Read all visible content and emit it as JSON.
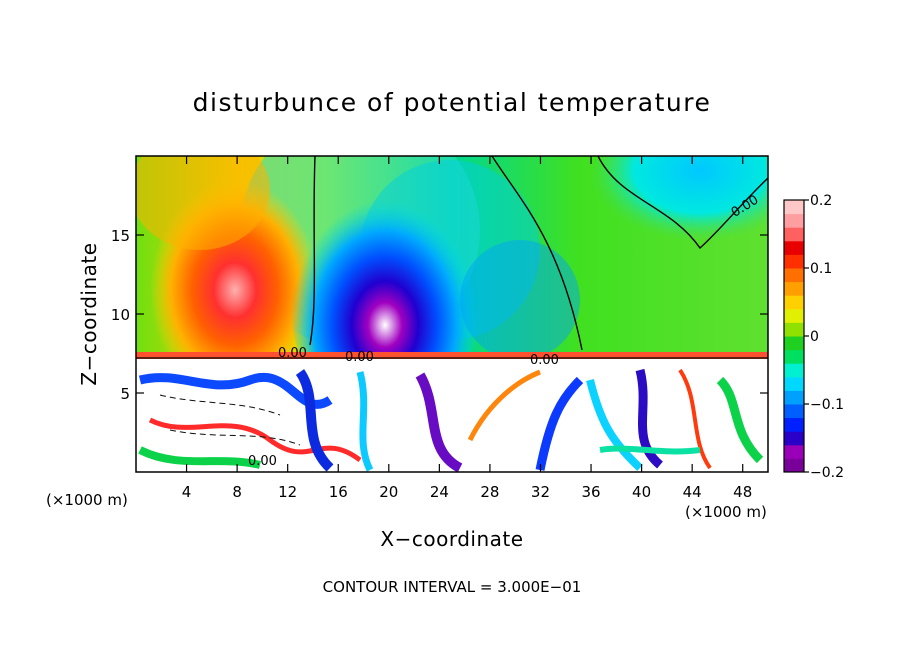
{
  "chart_data": {
    "type": "heatmap",
    "title": "disturbunce of potential temperature",
    "xlabel": "X−coordinate",
    "ylabel": "Z−coordinate",
    "x_unit": "(×1000 m)",
    "x_range": [
      0,
      50
    ],
    "y_range": [
      0,
      20
    ],
    "x_ticks": [
      "4",
      "8",
      "12",
      "16",
      "20",
      "24",
      "28",
      "32",
      "36",
      "40",
      "44",
      "48"
    ],
    "y_ticks": [
      "5",
      "10",
      "15"
    ],
    "colorbar": {
      "range": [
        -0.2,
        0.2
      ],
      "tick_labels": [
        "0.2",
        "0.1",
        "0",
        "−0.1",
        "−0.2"
      ],
      "colors": [
        "#7a009a",
        "#9a00b8",
        "#2a00c8",
        "#0020ff",
        "#0060ff",
        "#00a0ff",
        "#00d8ff",
        "#00f0d0",
        "#00e060",
        "#20d020",
        "#90e000",
        "#e0f000",
        "#ffd000",
        "#ffa000",
        "#ff7000",
        "#ff3000",
        "#e80000",
        "#ff6060",
        "#ff9ea0",
        "#ffc8c8"
      ]
    },
    "contour_label": "0.00",
    "annotation": "CONTOUR INTERVAL = 3.000E−01"
  }
}
